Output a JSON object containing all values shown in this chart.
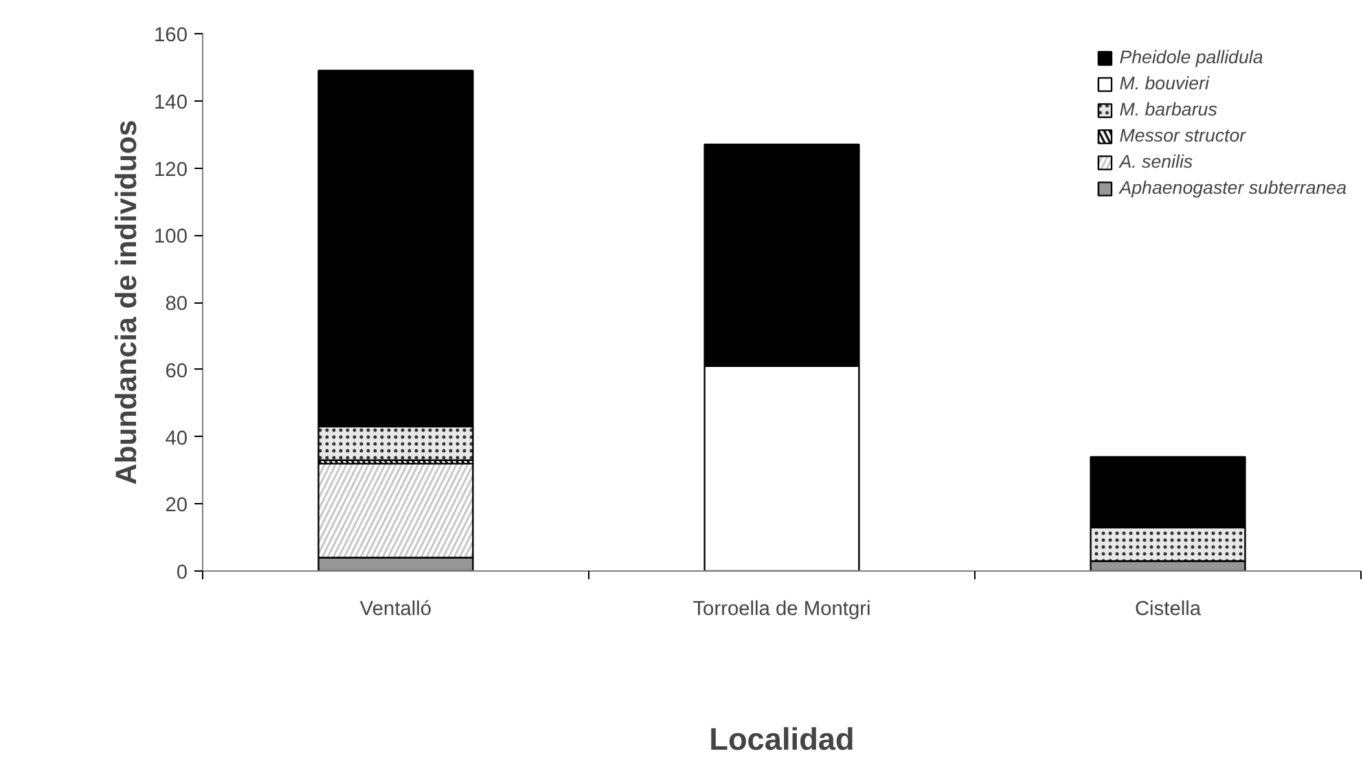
{
  "chart_data": {
    "type": "bar",
    "stacked": true,
    "xlabel": "Localidad",
    "ylabel": "Abundancia de individuos",
    "categories": [
      "Ventalló",
      "Torroella de Montgri",
      "Cistella"
    ],
    "series": [
      {
        "name": "Aphaenogaster subterranea",
        "color": "#969696",
        "values": [
          4,
          0,
          3
        ]
      },
      {
        "name": "A. senilis",
        "color": "#c8c8c8",
        "values": [
          28,
          0,
          0
        ]
      },
      {
        "name": "Messor structor",
        "color": "#000000",
        "values": [
          1,
          0,
          0
        ]
      },
      {
        "name": "M. barbarus",
        "color": "#e8e8e8",
        "values": [
          10,
          0,
          10
        ]
      },
      {
        "name": "M. bouvieri",
        "color": "#ffffff",
        "values": [
          0,
          61,
          0
        ]
      },
      {
        "name": "Pheidole pallidula",
        "color": "#000000",
        "values": [
          106,
          66,
          21
        ]
      }
    ],
    "ylim": [
      0,
      160
    ],
    "yticks": [
      0,
      20,
      40,
      60,
      80,
      100,
      120,
      140,
      160
    ],
    "grid": false,
    "legend": "top right"
  }
}
